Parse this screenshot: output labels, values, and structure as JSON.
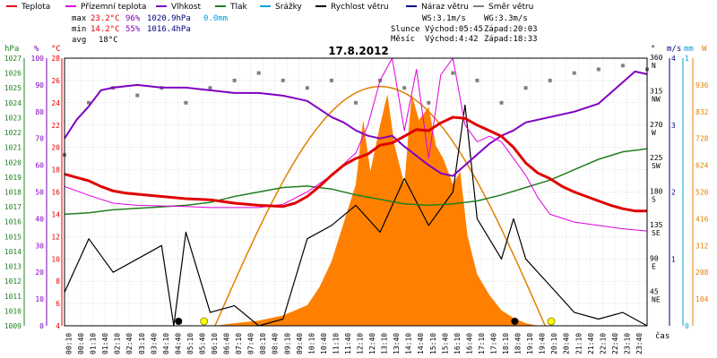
{
  "chart_data": {
    "type": "line",
    "title": "17.8.2012",
    "legend": [
      {
        "label": "Teplota",
        "color": "#e00000"
      },
      {
        "label": "Přízemní teplota",
        "color": "#e000e0"
      },
      {
        "label": "Vlhkost",
        "color": "#8000c0"
      },
      {
        "label": "Tlak",
        "color": "#208020"
      },
      {
        "label": "Srážky",
        "color": "#00a0e0"
      },
      {
        "label": "Rychlost větru",
        "color": "#000000"
      },
      {
        "label": "Náraz větru",
        "color": "#000080"
      },
      {
        "label": "Směr větru",
        "color": "#808080"
      }
    ],
    "stats": {
      "max_label": "max",
      "min_label": "min",
      "avg_label": "avg",
      "max_temp": "23.2°C",
      "max_hum": "96%",
      "max_press": "1020.9hPa",
      "max_rain": "0.0mm",
      "min_temp": "14.2°C",
      "min_hum": "55%",
      "min_press": "1016.4hPa",
      "avg_temp": "18°C",
      "ws": "WS:3.1m/s",
      "wg": "WG:3.3m/s",
      "sun_label": "Slunce",
      "sun_rise": "Východ:05:45",
      "sun_set": "Západ:20:03",
      "moon_label": "Měsíc",
      "moon_rise": "Východ:4:42",
      "moon_set": "Západ:18:33"
    },
    "units": {
      "press": "hPa",
      "hum": "%",
      "temp": "°C",
      "dir": "°",
      "wind": "m/s",
      "rain": "mm",
      "solar": "W",
      "time": "čas"
    },
    "axes": {
      "pressure_ticks": [
        "1027",
        "1026",
        "1025",
        "1024",
        "1023",
        "1022",
        "1021",
        "1020",
        "1019",
        "1018",
        "1017",
        "1016",
        "1015",
        "1014",
        "1013",
        "1012",
        "1011",
        "1010",
        "1009"
      ],
      "humidity_ticks": [
        "100",
        "90",
        "80",
        "70",
        "60",
        "50",
        "40",
        "30",
        "20",
        "10",
        "0"
      ],
      "temp_ticks": [
        "28",
        "26",
        "24",
        "22",
        "20",
        "18",
        "16",
        "14",
        "12",
        "10",
        "8",
        "6",
        "4"
      ],
      "dir_ticks": [
        "360",
        "315",
        "270",
        "225",
        "180",
        "135",
        "90",
        "45"
      ],
      "dir_names": [
        "N",
        "NW",
        "W",
        "SW",
        "S",
        "SE",
        "E",
        "NE"
      ],
      "wind_ticks": [
        "4",
        "3",
        "2",
        "1"
      ],
      "rain_ticks": [
        "1",
        "0"
      ],
      "solar_ticks": [
        "936",
        "832",
        "728",
        "624",
        "520",
        "416",
        "312",
        "208",
        "104"
      ],
      "time_ticks": [
        "00:10",
        "00:40",
        "01:10",
        "01:40",
        "02:10",
        "02:40",
        "03:10",
        "03:40",
        "04:10",
        "04:40",
        "05:10",
        "05:40",
        "06:10",
        "06:40",
        "07:10",
        "07:40",
        "08:10",
        "08:40",
        "09:10",
        "09:40",
        "10:10",
        "10:40",
        "11:10",
        "11:40",
        "12:10",
        "12:40",
        "13:10",
        "13:40",
        "14:10",
        "14:40",
        "15:10",
        "15:40",
        "16:10",
        "16:40",
        "17:10",
        "17:40",
        "18:10",
        "18:40",
        "19:10",
        "19:40",
        "20:10",
        "20:40",
        "21:10",
        "21:40",
        "22:10",
        "22:40",
        "23:10",
        "23:40"
      ]
    },
    "temp_range": [
      4,
      28
    ],
    "humidity_range": [
      0,
      100
    ],
    "pressure_range": [
      1009,
      1027
    ],
    "solar_range": [
      0,
      1040
    ],
    "wind_range": [
      0,
      4
    ],
    "dir_range": [
      0,
      360
    ],
    "series": {
      "temperature": [
        [
          0,
          17.6
        ],
        [
          0.5,
          17.3
        ],
        [
          1,
          17
        ],
        [
          1.5,
          16.5
        ],
        [
          2,
          16.1
        ],
        [
          2.5,
          15.9
        ],
        [
          3,
          15.8
        ],
        [
          4,
          15.6
        ],
        [
          5,
          15.4
        ],
        [
          6,
          15.3
        ],
        [
          7,
          15
        ],
        [
          8,
          14.8
        ],
        [
          9,
          14.7
        ],
        [
          9.5,
          15
        ],
        [
          10,
          15.6
        ],
        [
          10.5,
          16.5
        ],
        [
          11,
          17.5
        ],
        [
          11.5,
          18.4
        ],
        [
          12,
          19
        ],
        [
          12.5,
          19.4
        ],
        [
          13,
          20.2
        ],
        [
          13.5,
          20.4
        ],
        [
          14,
          21
        ],
        [
          14.5,
          21.6
        ],
        [
          15,
          21.5
        ],
        [
          15.5,
          22.2
        ],
        [
          16,
          22.7
        ],
        [
          16.5,
          22.6
        ],
        [
          17,
          22
        ],
        [
          17.5,
          21.5
        ],
        [
          18,
          21
        ],
        [
          18.5,
          20
        ],
        [
          19,
          18.6
        ],
        [
          19.5,
          17.7
        ],
        [
          20,
          17.2
        ],
        [
          20.5,
          16.5
        ],
        [
          21,
          16
        ],
        [
          21.5,
          15.6
        ],
        [
          22,
          15.2
        ],
        [
          22.5,
          14.8
        ],
        [
          23,
          14.5
        ],
        [
          23.5,
          14.3
        ],
        [
          24,
          14.3
        ]
      ],
      "ground_temp": [
        [
          0,
          16.5
        ],
        [
          1,
          15.7
        ],
        [
          2,
          15
        ],
        [
          3,
          14.8
        ],
        [
          5,
          14.7
        ],
        [
          6,
          14.6
        ],
        [
          7,
          14.6
        ],
        [
          8,
          14.6
        ],
        [
          9,
          14.9
        ],
        [
          10,
          16
        ],
        [
          11,
          17.5
        ],
        [
          12,
          19.5
        ],
        [
          12.5,
          22
        ],
        [
          13,
          26
        ],
        [
          13.5,
          28
        ],
        [
          14,
          21.5
        ],
        [
          14.5,
          27
        ],
        [
          15,
          19
        ],
        [
          15.5,
          26.5
        ],
        [
          16,
          28
        ],
        [
          16.5,
          22
        ],
        [
          17,
          20.5
        ],
        [
          17.5,
          21
        ],
        [
          18,
          20.5
        ],
        [
          19,
          17.5
        ],
        [
          19.5,
          15.5
        ],
        [
          20,
          14
        ],
        [
          21,
          13.3
        ],
        [
          22,
          13
        ],
        [
          23,
          12.7
        ],
        [
          24,
          12.5
        ]
      ],
      "humidity": [
        [
          0,
          70
        ],
        [
          0.5,
          77
        ],
        [
          1,
          82
        ],
        [
          1.5,
          88
        ],
        [
          2,
          89
        ],
        [
          3,
          90
        ],
        [
          4,
          89
        ],
        [
          5,
          89
        ],
        [
          6,
          88
        ],
        [
          7,
          87
        ],
        [
          8,
          87
        ],
        [
          9,
          86
        ],
        [
          9.5,
          85
        ],
        [
          10,
          84
        ],
        [
          10.5,
          81
        ],
        [
          11,
          78
        ],
        [
          11.5,
          76
        ],
        [
          12,
          73
        ],
        [
          12.5,
          71
        ],
        [
          13,
          70
        ],
        [
          13.5,
          71
        ],
        [
          14,
          67
        ],
        [
          15,
          60
        ],
        [
          15.5,
          57
        ],
        [
          16,
          56
        ],
        [
          16.5,
          60
        ],
        [
          17,
          64
        ],
        [
          17.5,
          68
        ],
        [
          18,
          71
        ],
        [
          18.5,
          73
        ],
        [
          19,
          76
        ],
        [
          19.5,
          77
        ],
        [
          20,
          78
        ],
        [
          21,
          80
        ],
        [
          22,
          83
        ],
        [
          23,
          91
        ],
        [
          23.5,
          95
        ],
        [
          24,
          94
        ]
      ],
      "pressure": [
        [
          0,
          1016.5
        ],
        [
          1,
          1016.6
        ],
        [
          2,
          1016.8
        ],
        [
          3,
          1016.9
        ],
        [
          4,
          1017
        ],
        [
          5,
          1017.1
        ],
        [
          6,
          1017.3
        ],
        [
          7,
          1017.7
        ],
        [
          8,
          1018
        ],
        [
          9,
          1018.3
        ],
        [
          10,
          1018.4
        ],
        [
          11,
          1018.2
        ],
        [
          12,
          1017.8
        ],
        [
          13,
          1017.5
        ],
        [
          14,
          1017.2
        ],
        [
          15,
          1017.1
        ],
        [
          16,
          1017.2
        ],
        [
          17,
          1017.4
        ],
        [
          18,
          1017.8
        ],
        [
          19,
          1018.3
        ],
        [
          20,
          1018.8
        ],
        [
          21,
          1019.5
        ],
        [
          22,
          1020.2
        ],
        [
          23,
          1020.7
        ],
        [
          24,
          1020.9
        ]
      ],
      "solar": [
        [
          0,
          0
        ],
        [
          6.2,
          0
        ],
        [
          7,
          10
        ],
        [
          8,
          20
        ],
        [
          9,
          40
        ],
        [
          10,
          80
        ],
        [
          10.5,
          150
        ],
        [
          11,
          250
        ],
        [
          11.5,
          400
        ],
        [
          12,
          550
        ],
        [
          12.3,
          800
        ],
        [
          12.6,
          600
        ],
        [
          13,
          780
        ],
        [
          13.3,
          900
        ],
        [
          13.6,
          700
        ],
        [
          14,
          550
        ],
        [
          14.3,
          900
        ],
        [
          14.6,
          800
        ],
        [
          15,
          850
        ],
        [
          15.3,
          700
        ],
        [
          15.6,
          650
        ],
        [
          16,
          550
        ],
        [
          16.3,
          600
        ],
        [
          16.6,
          350
        ],
        [
          17,
          200
        ],
        [
          17.5,
          120
        ],
        [
          18,
          60
        ],
        [
          18.5,
          30
        ],
        [
          19,
          10
        ],
        [
          19.5,
          0
        ],
        [
          24,
          0
        ]
      ],
      "solar_max": [
        [
          6.2,
          0
        ],
        [
          8,
          380
        ],
        [
          10,
          760
        ],
        [
          12,
          920
        ],
        [
          13,
          930
        ],
        [
          14,
          880
        ],
        [
          16,
          680
        ],
        [
          18,
          360
        ],
        [
          19.8,
          0
        ]
      ],
      "wind_speed": [
        [
          0,
          0.5
        ],
        [
          1,
          1.3
        ],
        [
          2,
          0.8
        ],
        [
          3,
          1
        ],
        [
          4,
          1.2
        ],
        [
          4.5,
          0
        ],
        [
          5,
          1.4
        ],
        [
          6,
          0.2
        ],
        [
          7,
          0.3
        ],
        [
          8,
          0
        ],
        [
          9,
          0.1
        ],
        [
          10,
          1.3
        ],
        [
          11,
          1.5
        ],
        [
          12,
          1.8
        ],
        [
          13,
          1.4
        ],
        [
          14,
          2.2
        ],
        [
          15,
          1.5
        ],
        [
          16,
          2
        ],
        [
          16.5,
          3.3
        ],
        [
          17,
          1.6
        ],
        [
          18,
          1
        ],
        [
          18.5,
          1.6
        ],
        [
          19,
          1
        ],
        [
          20,
          0.6
        ],
        [
          21,
          0.2
        ],
        [
          22,
          0.1
        ],
        [
          23,
          0.2
        ],
        [
          24,
          0
        ]
      ],
      "wind_dir": [
        [
          0,
          230
        ],
        [
          1,
          300
        ],
        [
          2,
          320
        ],
        [
          3,
          310
        ],
        [
          4,
          320
        ],
        [
          5,
          300
        ],
        [
          6,
          320
        ],
        [
          7,
          330
        ],
        [
          8,
          340
        ],
        [
          9,
          330
        ],
        [
          10,
          320
        ],
        [
          11,
          330
        ],
        [
          12,
          300
        ],
        [
          13,
          330
        ],
        [
          14,
          320
        ],
        [
          15,
          300
        ],
        [
          16,
          340
        ],
        [
          17,
          330
        ],
        [
          18,
          300
        ],
        [
          19,
          320
        ],
        [
          20,
          330
        ],
        [
          21,
          340
        ],
        [
          22,
          345
        ],
        [
          23,
          350
        ],
        [
          24,
          345
        ]
      ]
    },
    "markers": {
      "moon_rise_h": 4.7,
      "sun_rise_h": 5.75,
      "moon_set_h": 18.55,
      "sun_set_h": 20.05
    },
    "colors": {
      "temperature": "#e00000",
      "ground_temp": "#e000e0",
      "humidity": "#8000c0",
      "pressure": "#208020",
      "solar": "#ff8000",
      "solar_max": "#e08000",
      "wind": "#000000",
      "gust": "#000080",
      "dir": "#808080",
      "rain": "#00a0e0",
      "grid": "#c0c0c0"
    }
  }
}
